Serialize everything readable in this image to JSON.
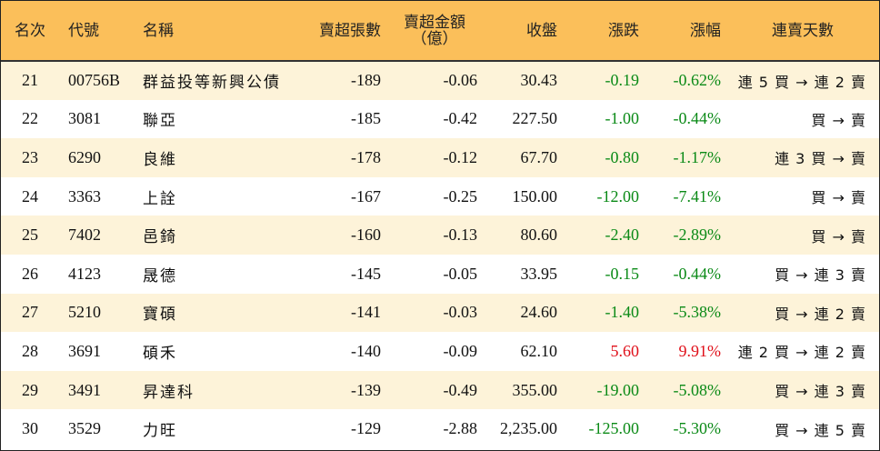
{
  "colors": {
    "header_bg": "#fbbf5a",
    "row_alt_bg": "#fdf3d9",
    "down": "#0a8a16",
    "up": "#e0101a"
  },
  "headers": {
    "rank": "名次",
    "code": "代號",
    "name": "名稱",
    "net_sell_lots": "賣超張數",
    "net_sell_amount_line1": "賣超金額",
    "net_sell_amount_line2": "（億）",
    "close": "收盤",
    "change": "漲跌",
    "change_pct": "漲幅",
    "consecutive_days": "連賣天數"
  },
  "rows": [
    {
      "rank": "21",
      "code": "00756B",
      "name": "群益投等新興公債",
      "lots": "-189",
      "amount": "-0.06",
      "close": "30.43",
      "change": "-0.19",
      "pct": "-0.62%",
      "days": "連 5 買 → 連 2 賣",
      "dir": "down"
    },
    {
      "rank": "22",
      "code": "3081",
      "name": "聯亞",
      "lots": "-185",
      "amount": "-0.42",
      "close": "227.50",
      "change": "-1.00",
      "pct": "-0.44%",
      "days": "買 → 賣",
      "dir": "down"
    },
    {
      "rank": "23",
      "code": "6290",
      "name": "良維",
      "lots": "-178",
      "amount": "-0.12",
      "close": "67.70",
      "change": "-0.80",
      "pct": "-1.17%",
      "days": "連 3 買 → 賣",
      "dir": "down"
    },
    {
      "rank": "24",
      "code": "3363",
      "name": "上詮",
      "lots": "-167",
      "amount": "-0.25",
      "close": "150.00",
      "change": "-12.00",
      "pct": "-7.41%",
      "days": "買 → 賣",
      "dir": "down"
    },
    {
      "rank": "25",
      "code": "7402",
      "name": "邑錡",
      "lots": "-160",
      "amount": "-0.13",
      "close": "80.60",
      "change": "-2.40",
      "pct": "-2.89%",
      "days": "買 → 賣",
      "dir": "down"
    },
    {
      "rank": "26",
      "code": "4123",
      "name": "晟德",
      "lots": "-145",
      "amount": "-0.05",
      "close": "33.95",
      "change": "-0.15",
      "pct": "-0.44%",
      "days": "買 → 連 3 賣",
      "dir": "down"
    },
    {
      "rank": "27",
      "code": "5210",
      "name": "寶碩",
      "lots": "-141",
      "amount": "-0.03",
      "close": "24.60",
      "change": "-1.40",
      "pct": "-5.38%",
      "days": "買 → 連 2 賣",
      "dir": "down"
    },
    {
      "rank": "28",
      "code": "3691",
      "name": "碩禾",
      "lots": "-140",
      "amount": "-0.09",
      "close": "62.10",
      "change": "5.60",
      "pct": "9.91%",
      "days": "連 2 買 → 連 2 賣",
      "dir": "up"
    },
    {
      "rank": "29",
      "code": "3491",
      "name": "昇達科",
      "lots": "-139",
      "amount": "-0.49",
      "close": "355.00",
      "change": "-19.00",
      "pct": "-5.08%",
      "days": "買 → 連 3 賣",
      "dir": "down"
    },
    {
      "rank": "30",
      "code": "3529",
      "name": "力旺",
      "lots": "-129",
      "amount": "-2.88",
      "close": "2,235.00",
      "change": "-125.00",
      "pct": "-5.30%",
      "days": "買 → 連 5 賣",
      "dir": "down"
    }
  ]
}
